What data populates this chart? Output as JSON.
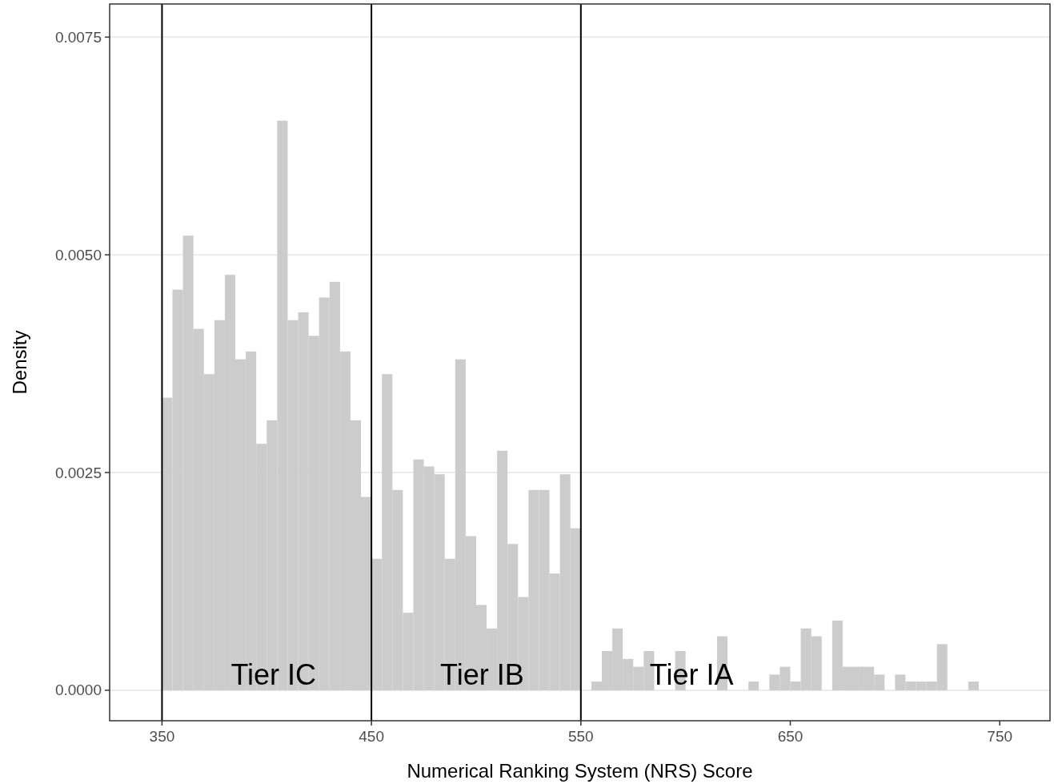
{
  "chart_data": {
    "type": "histogram",
    "xlabel": "Numerical Ranking System (NRS) Score",
    "ylabel": "Density",
    "color": "#cccccc",
    "bins": [
      350,
      355,
      360,
      365,
      370,
      375,
      380,
      385,
      390,
      395,
      400,
      405,
      410,
      415,
      420,
      425,
      430,
      435,
      440,
      445,
      450,
      455,
      460,
      465,
      470,
      475,
      480,
      485,
      490,
      495,
      500,
      505,
      510,
      515,
      520,
      525,
      530,
      535,
      540,
      545,
      550,
      555,
      560,
      565,
      570,
      575,
      580,
      585,
      590,
      595,
      600,
      605,
      610,
      615,
      620,
      625,
      630,
      635,
      640,
      645,
      650,
      655,
      660,
      665,
      670,
      675,
      680,
      685,
      690,
      695,
      700,
      705,
      710,
      715,
      720,
      725,
      730,
      735,
      740,
      745,
      750,
      755
    ],
    "values": [
      0.00336,
      0.0046,
      0.00522,
      0.00415,
      0.00363,
      0.00425,
      0.00477,
      0.0038,
      0.00389,
      0.00283,
      0.0031,
      0.00654,
      0.00425,
      0.00434,
      0.00407,
      0.00451,
      0.00469,
      0.00389,
      0.0031,
      0.00222,
      0.00151,
      0.00363,
      0.0023,
      0.00089,
      0.00265,
      0.00257,
      0.00248,
      0.00151,
      0.0038,
      0.00177,
      0.00098,
      0.00071,
      0.00275,
      0.00168,
      0.00107,
      0.0023,
      0.0023,
      0.00134,
      0.00248,
      0.00186,
      0,
      0.0001,
      0.00045,
      0.00071,
      0.00036,
      0.00027,
      0.00045,
      0,
      0,
      0.00045,
      0,
      0,
      0,
      0.00062,
      0,
      0,
      0.0001,
      0,
      0.00018,
      0.00027,
      0.0001,
      0.00071,
      0.00062,
      0,
      0.0008,
      0.00027,
      0.00027,
      0.00027,
      0.00018,
      0,
      0.00018,
      0.0001,
      0.0001,
      0.0001,
      0.00053,
      0,
      0,
      0.0001,
      0,
      0,
      0
    ],
    "xlim": [
      325,
      774
    ],
    "xticks": [
      350,
      450,
      550,
      650,
      750
    ],
    "ylim": [
      -0.00035,
      0.00788
    ],
    "yticks": [
      {
        "value": 0,
        "label": "0.0000"
      },
      {
        "value": 0.0025,
        "label": "0.0025"
      },
      {
        "value": 0.005,
        "label": "0.0050"
      },
      {
        "value": 0.0075,
        "label": "0.0075"
      }
    ],
    "grid": "y",
    "ref_lines": [
      {
        "axis": "x",
        "value": 350,
        "color": "#000000"
      },
      {
        "axis": "x",
        "value": 450,
        "color": "#000000"
      },
      {
        "axis": "x",
        "value": 550,
        "color": "#000000"
      }
    ],
    "annotations": [
      "Tier IC",
      "Tier IB",
      "Tier IA"
    ]
  }
}
